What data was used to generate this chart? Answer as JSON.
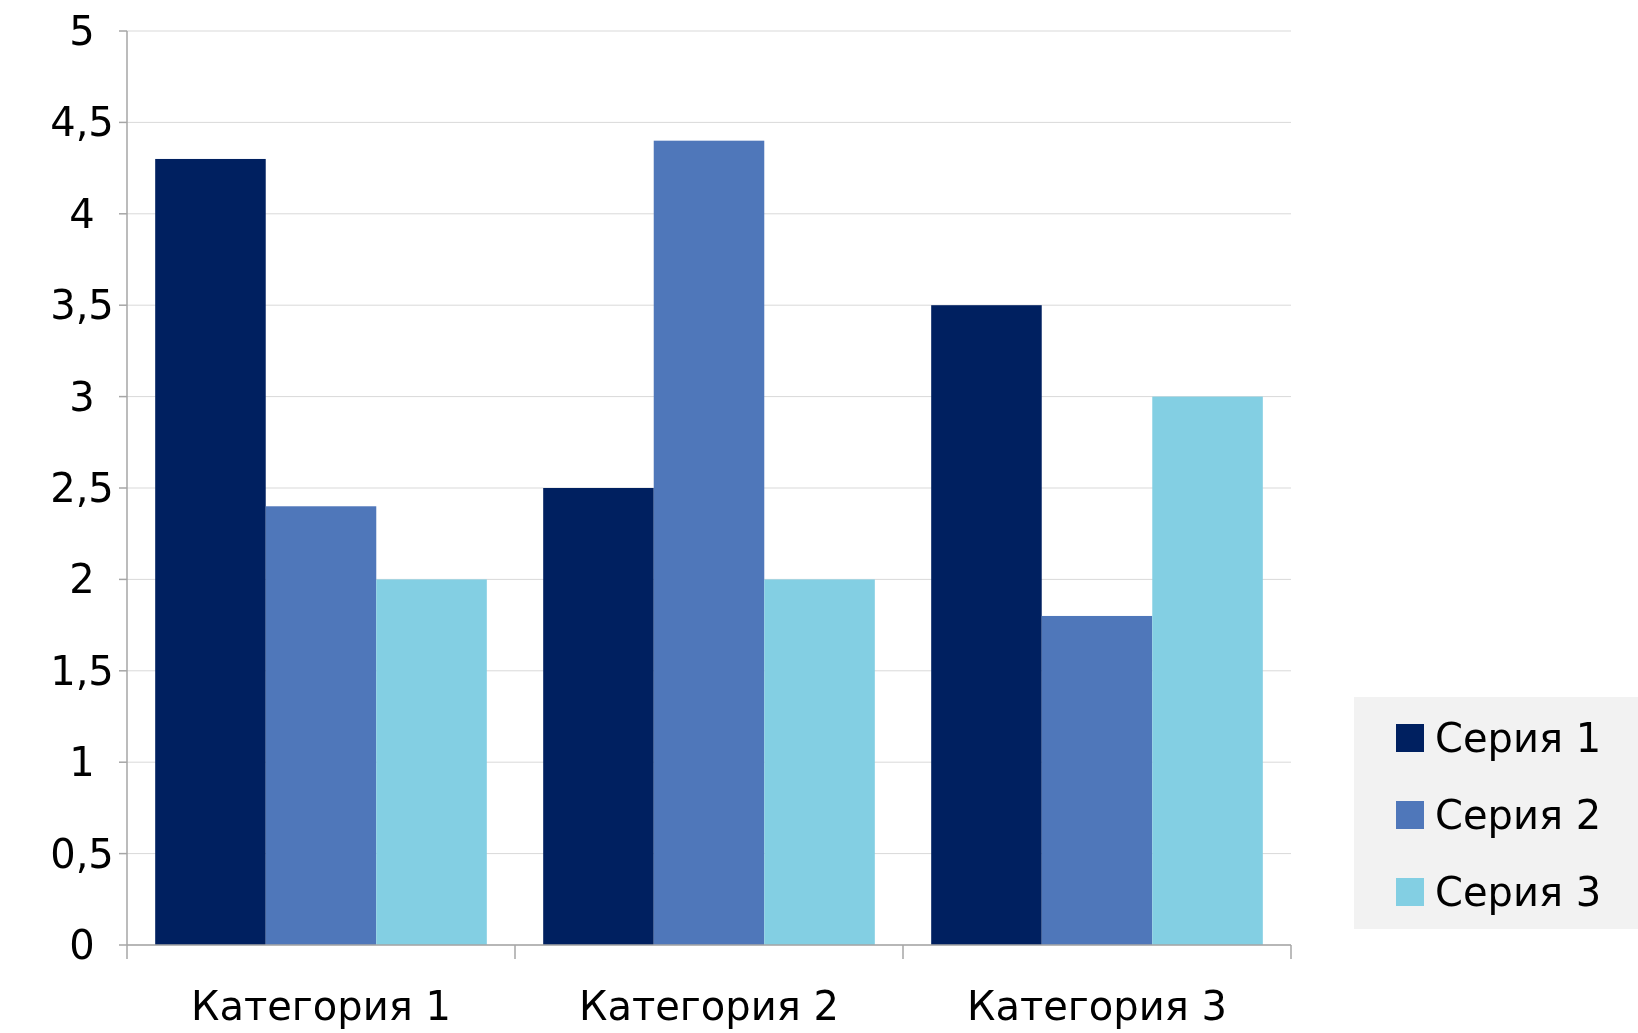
{
  "chart_data": {
    "type": "bar",
    "categories": [
      "Категория 1",
      "Категория 2",
      "Категория 3"
    ],
    "series": [
      {
        "name": "Серия 1",
        "color": "#002060",
        "values": [
          4.3,
          2.5,
          3.5
        ]
      },
      {
        "name": "Серия 2",
        "color": "#4f77ba",
        "values": [
          2.4,
          4.4,
          1.8
        ]
      },
      {
        "name": "Серия 3",
        "color": "#83cfe3",
        "values": [
          2,
          2,
          3
        ]
      }
    ],
    "ylim": [
      0,
      5
    ],
    "yticks": [
      0,
      {
        "value": 0.5,
        "label": "0,5"
      },
      1,
      {
        "value": 1.5,
        "label": "1,5"
      },
      2,
      {
        "value": 2.5,
        "label": "2,5"
      },
      3,
      {
        "value": 3.5,
        "label": "3,5"
      },
      4,
      {
        "value": 4.5,
        "label": "4,5"
      },
      5
    ],
    "grid": "y",
    "legend": "right"
  }
}
